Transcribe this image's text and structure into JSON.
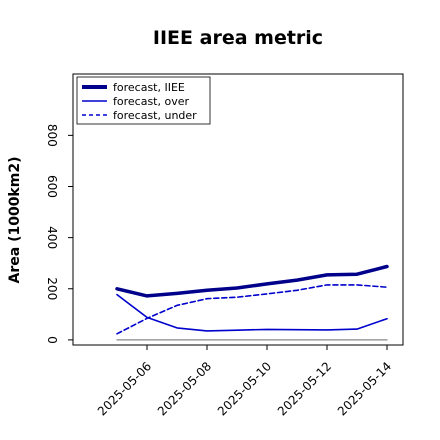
{
  "chart_data": {
    "type": "line",
    "title": "IIEE area metric",
    "ylabel": "Area (1000km2)",
    "xlabel": "",
    "x": [
      "2025-05-05",
      "2025-05-06",
      "2025-05-07",
      "2025-05-08",
      "2025-05-09",
      "2025-05-10",
      "2025-05-11",
      "2025-05-12",
      "2025-05-13",
      "2025-05-14"
    ],
    "xlim": [
      "2025-05-04",
      "2025-05-14"
    ],
    "ylim": [
      -20,
      1040
    ],
    "yticks": [
      0,
      200,
      400,
      600,
      800
    ],
    "xticks": [
      "2025-05-06",
      "2025-05-08",
      "2025-05-10",
      "2025-05-12",
      "2025-05-14"
    ],
    "xtick_colors": [
      "#228b22",
      "#000000",
      "#000000",
      "#000000",
      "#000000"
    ],
    "series": [
      {
        "name": "forecast, IIEE",
        "color": "#00008b",
        "style": "solid-thick",
        "values": [
          200,
          172,
          182,
          194,
          203,
          219,
          234,
          254,
          257,
          287
        ]
      },
      {
        "name": "forecast, over",
        "color": "#0000cd",
        "style": "solid",
        "values": [
          177,
          88,
          47,
          35,
          38,
          41,
          40,
          39,
          42,
          83
        ]
      },
      {
        "name": "forecast, under",
        "color": "#0000cd",
        "style": "dashed",
        "values": [
          24,
          84,
          135,
          161,
          167,
          180,
          194,
          215,
          215,
          206
        ]
      },
      {
        "name": "",
        "color": "#888888",
        "style": "solid-thin",
        "values": [
          0,
          0,
          0,
          0,
          0,
          0,
          0,
          0,
          0,
          0
        ]
      }
    ],
    "legend": "top-left",
    "grid": false
  }
}
